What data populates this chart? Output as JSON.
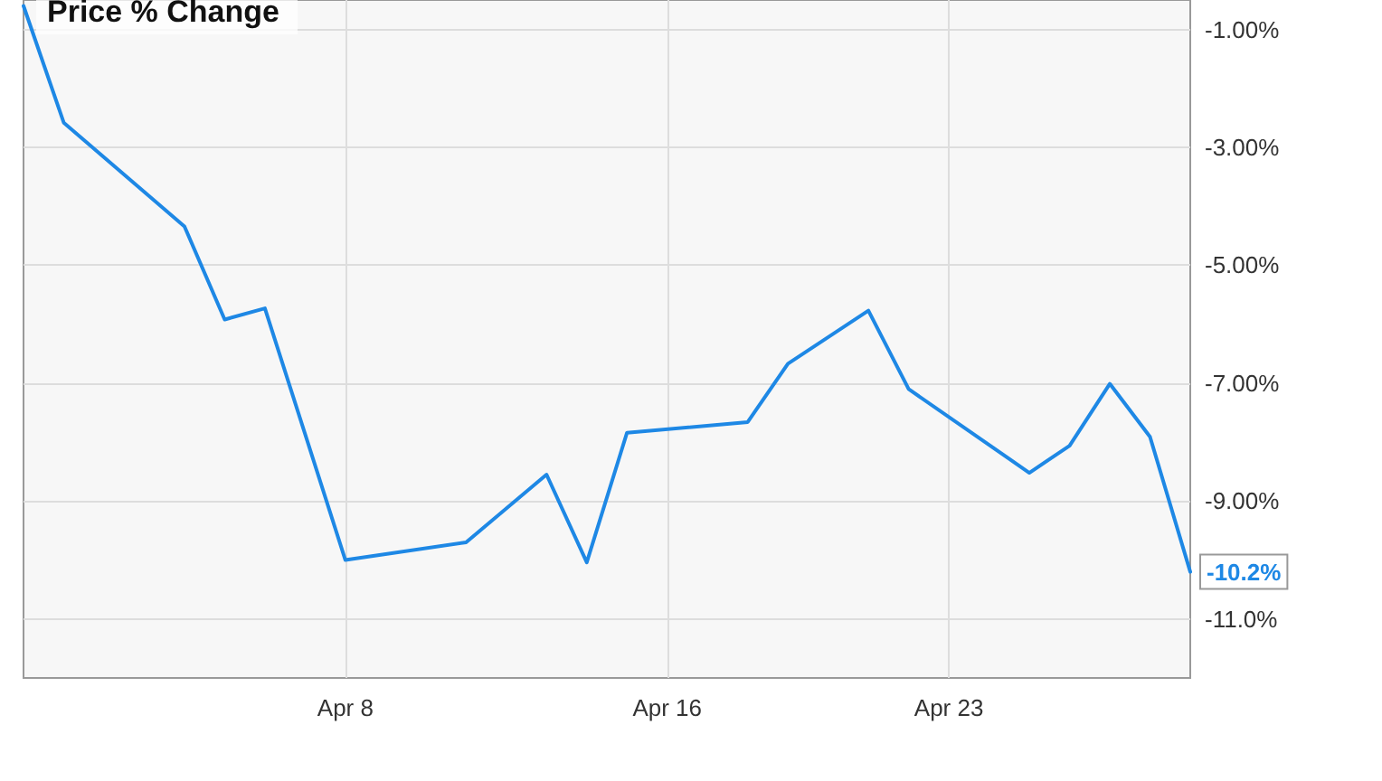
{
  "chart_data": {
    "type": "line",
    "title": "Price % Change",
    "x": [
      "--03-31",
      "--04-01",
      "--04-04",
      "--04-05",
      "--04-06",
      "--04-08",
      "--04-11",
      "--04-13",
      "--04-14",
      "--04-15",
      "--04-18",
      "--04-19",
      "--04-21",
      "--04-22",
      "--04-25",
      "--04-26",
      "--04-27",
      "--04-28",
      "--04-29"
    ],
    "series": [
      {
        "color": "#1e88e5",
        "values": [
          -0.6,
          -2.58,
          -4.34,
          -5.92,
          -5.73,
          -10.0,
          -9.7,
          -8.55,
          -10.04,
          -7.84,
          -7.66,
          -6.67,
          -5.77,
          -7.1,
          -8.52,
          -8.06,
          -7.01,
          -7.91,
          -10.2
        ],
        "value_labels": [
          null,
          null,
          null,
          null,
          null,
          null,
          null,
          null,
          null,
          null,
          null,
          null,
          null,
          null,
          null,
          null,
          null,
          null,
          "-10.2%"
        ]
      }
    ],
    "xlim": [
      "--03-31",
      "--04-29"
    ],
    "xticks": [
      {
        "value": "--04-08",
        "label": "Apr 8"
      },
      {
        "value": "--04-16",
        "label": "Apr 16"
      },
      {
        "value": "--04-23",
        "label": "Apr 23"
      }
    ],
    "ylim": [
      -12,
      -0.5
    ],
    "yticks": [
      {
        "value": -1,
        "label": "-1.00%"
      },
      {
        "value": -3,
        "label": "-3.00%"
      },
      {
        "value": -5,
        "label": "-5.00%"
      },
      {
        "value": -7,
        "label": "-7.00%"
      },
      {
        "value": -9,
        "label": "-9.00%"
      },
      {
        "value": -11,
        "label": "-11.0%"
      }
    ],
    "grid": true,
    "marker": "none",
    "line_style": "solid"
  }
}
